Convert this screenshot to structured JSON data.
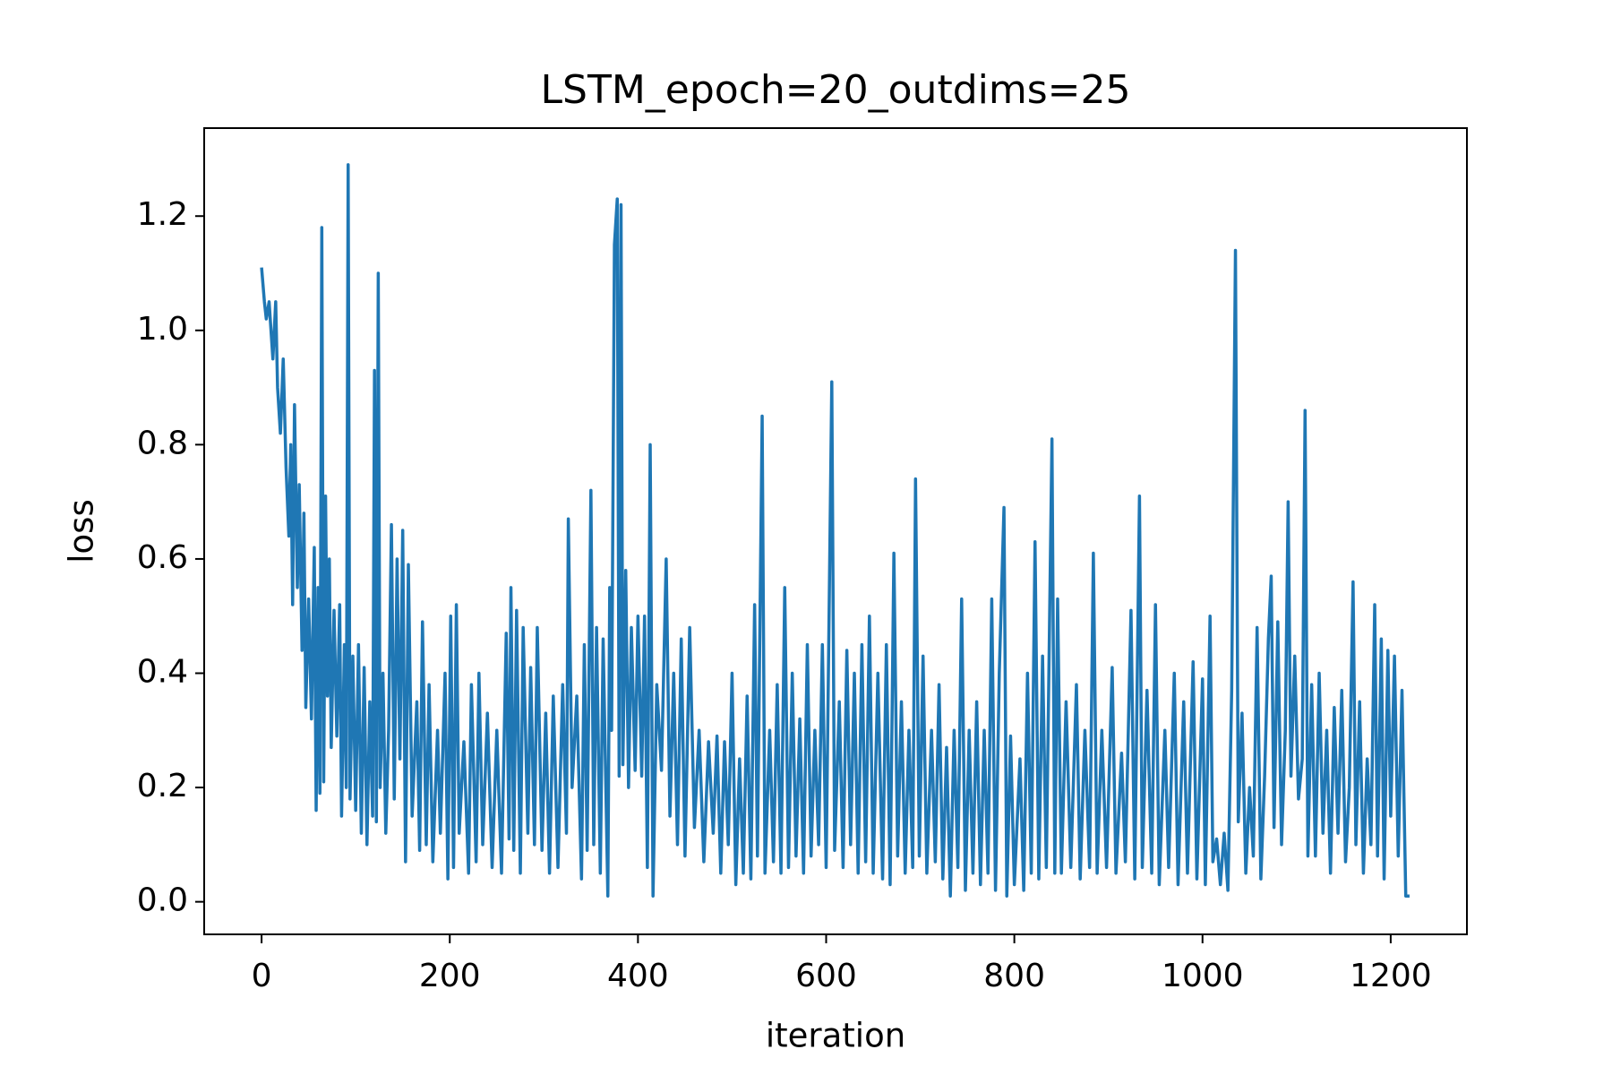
{
  "chart_data": {
    "type": "line",
    "title": "LSTM_epoch=20_outdims=25",
    "xlabel": "iteration",
    "ylabel": "loss",
    "xlim": [
      -61,
      1281
    ],
    "ylim": [
      -0.057,
      1.354
    ],
    "xticks": [
      0,
      200,
      400,
      600,
      800,
      1000,
      1200
    ],
    "yticks": [
      {
        "value": 0,
        "label": "0.0"
      },
      0.2,
      0.4,
      0.6,
      0.8,
      {
        "value": 1,
        "label": "1.0"
      },
      1.2
    ],
    "grid": false,
    "x": [
      0,
      3,
      5,
      8,
      12,
      15,
      17,
      20,
      23,
      26,
      29,
      31,
      33,
      35,
      38,
      40,
      43,
      45,
      47,
      50,
      53,
      56,
      58,
      60,
      62,
      64,
      66,
      68,
      70,
      72,
      74,
      77,
      80,
      83,
      85,
      88,
      90,
      92,
      94,
      97,
      100,
      103,
      106,
      109,
      112,
      115,
      118,
      120,
      122,
      124,
      126,
      129,
      132,
      135,
      138,
      141,
      144,
      147,
      150,
      153,
      156,
      160,
      165,
      168,
      171,
      175,
      178,
      182,
      187,
      190,
      195,
      198,
      201,
      204,
      207,
      210,
      215,
      220,
      223,
      228,
      231,
      235,
      240,
      245,
      250,
      255,
      260,
      263,
      265,
      268,
      271,
      275,
      278,
      283,
      286,
      290,
      293,
      298,
      302,
      306,
      310,
      315,
      320,
      324,
      326,
      330,
      335,
      340,
      343,
      346,
      350,
      353,
      356,
      360,
      363,
      368,
      370,
      372,
      375,
      378,
      380,
      382,
      384,
      387,
      390,
      393,
      397,
      400,
      404,
      407,
      410,
      413,
      416,
      420,
      425,
      430,
      434,
      438,
      442,
      446,
      450,
      455,
      460,
      465,
      470,
      475,
      480,
      484,
      488,
      492,
      496,
      500,
      504,
      508,
      512,
      516,
      520,
      524,
      527,
      532,
      535,
      540,
      544,
      548,
      552,
      556,
      560,
      564,
      568,
      572,
      576,
      580,
      584,
      588,
      592,
      596,
      600,
      606,
      609,
      614,
      618,
      622,
      626,
      630,
      634,
      638,
      642,
      646,
      650,
      655,
      660,
      664,
      668,
      672,
      676,
      680,
      684,
      688,
      692,
      695,
      699,
      703,
      707,
      712,
      716,
      720,
      724,
      728,
      732,
      736,
      740,
      744,
      748,
      752,
      756,
      760,
      764,
      768,
      772,
      776,
      780,
      784,
      789,
      792,
      796,
      800,
      806,
      810,
      814,
      818,
      822,
      826,
      830,
      834,
      840,
      843,
      846,
      850,
      855,
      860,
      866,
      870,
      875,
      880,
      884,
      888,
      893,
      898,
      904,
      908,
      914,
      918,
      924,
      928,
      933,
      936,
      941,
      946,
      950,
      954,
      960,
      964,
      970,
      974,
      980,
      984,
      990,
      994,
      1000,
      1003,
      1008,
      1011,
      1015,
      1019,
      1023,
      1027,
      1031,
      1035,
      1038,
      1042,
      1046,
      1050,
      1054,
      1058,
      1062,
      1066,
      1070,
      1073,
      1076,
      1080,
      1084,
      1088,
      1091,
      1094,
      1098,
      1102,
      1106,
      1109,
      1112,
      1116,
      1120,
      1124,
      1128,
      1132,
      1136,
      1140,
      1144,
      1148,
      1152,
      1156,
      1160,
      1163,
      1167,
      1171,
      1175,
      1179,
      1183,
      1186,
      1190,
      1193,
      1197,
      1200,
      1204,
      1208,
      1212,
      1216,
      1220
    ],
    "series": [
      {
        "name": "loss",
        "color": "#1f77b4",
        "values": [
          1.11,
          1.05,
          1.02,
          1.05,
          0.95,
          1.05,
          0.9,
          0.82,
          0.95,
          0.76,
          0.64,
          0.8,
          0.52,
          0.87,
          0.55,
          0.73,
          0.44,
          0.68,
          0.34,
          0.53,
          0.32,
          0.62,
          0.16,
          0.55,
          0.19,
          1.18,
          0.21,
          0.71,
          0.36,
          0.6,
          0.27,
          0.51,
          0.29,
          0.52,
          0.15,
          0.45,
          0.2,
          1.29,
          0.18,
          0.43,
          0.16,
          0.45,
          0.12,
          0.41,
          0.1,
          0.35,
          0.15,
          0.93,
          0.14,
          1.1,
          0.2,
          0.4,
          0.12,
          0.3,
          0.66,
          0.18,
          0.6,
          0.25,
          0.65,
          0.07,
          0.59,
          0.15,
          0.35,
          0.09,
          0.49,
          0.1,
          0.38,
          0.07,
          0.3,
          0.12,
          0.4,
          0.04,
          0.5,
          0.06,
          0.52,
          0.12,
          0.28,
          0.05,
          0.38,
          0.07,
          0.4,
          0.1,
          0.33,
          0.06,
          0.3,
          0.05,
          0.47,
          0.11,
          0.55,
          0.09,
          0.51,
          0.05,
          0.48,
          0.12,
          0.41,
          0.1,
          0.48,
          0.09,
          0.33,
          0.05,
          0.36,
          0.06,
          0.38,
          0.12,
          0.67,
          0.2,
          0.36,
          0.04,
          0.45,
          0.09,
          0.72,
          0.1,
          0.48,
          0.05,
          0.46,
          0.01,
          0.55,
          0.3,
          1.15,
          1.23,
          0.22,
          1.22,
          0.24,
          0.58,
          0.2,
          0.48,
          0.23,
          0.5,
          0.22,
          0.5,
          0.06,
          0.8,
          0.01,
          0.38,
          0.23,
          0.6,
          0.15,
          0.4,
          0.1,
          0.46,
          0.08,
          0.48,
          0.13,
          0.3,
          0.07,
          0.28,
          0.12,
          0.29,
          0.05,
          0.28,
          0.1,
          0.4,
          0.03,
          0.25,
          0.05,
          0.36,
          0.04,
          0.52,
          0.08,
          0.85,
          0.05,
          0.3,
          0.07,
          0.38,
          0.05,
          0.55,
          0.06,
          0.4,
          0.08,
          0.32,
          0.05,
          0.45,
          0.08,
          0.3,
          0.1,
          0.45,
          0.06,
          0.91,
          0.09,
          0.35,
          0.06,
          0.44,
          0.1,
          0.4,
          0.05,
          0.45,
          0.07,
          0.5,
          0.05,
          0.4,
          0.04,
          0.45,
          0.03,
          0.61,
          0.08,
          0.35,
          0.05,
          0.3,
          0.06,
          0.74,
          0.08,
          0.43,
          0.05,
          0.3,
          0.07,
          0.38,
          0.04,
          0.27,
          0.01,
          0.3,
          0.06,
          0.53,
          0.02,
          0.3,
          0.05,
          0.35,
          0.03,
          0.3,
          0.05,
          0.53,
          0.02,
          0.4,
          0.69,
          0.01,
          0.29,
          0.03,
          0.25,
          0.02,
          0.4,
          0.05,
          0.63,
          0.04,
          0.43,
          0.06,
          0.81,
          0.05,
          0.53,
          0.05,
          0.35,
          0.06,
          0.38,
          0.04,
          0.3,
          0.06,
          0.61,
          0.05,
          0.3,
          0.06,
          0.41,
          0.05,
          0.26,
          0.07,
          0.51,
          0.04,
          0.71,
          0.06,
          0.37,
          0.05,
          0.52,
          0.03,
          0.3,
          0.06,
          0.4,
          0.03,
          0.35,
          0.05,
          0.42,
          0.04,
          0.39,
          0.03,
          0.5,
          0.07,
          0.11,
          0.03,
          0.12,
          0.02,
          0.37,
          1.14,
          0.14,
          0.33,
          0.05,
          0.2,
          0.08,
          0.48,
          0.04,
          0.22,
          0.46,
          0.57,
          0.13,
          0.49,
          0.1,
          0.3,
          0.7,
          0.22,
          0.43,
          0.18,
          0.25,
          0.86,
          0.08,
          0.38,
          0.08,
          0.4,
          0.12,
          0.3,
          0.05,
          0.34,
          0.12,
          0.37,
          0.07,
          0.2,
          0.56,
          0.1,
          0.35,
          0.05,
          0.25,
          0.1,
          0.52,
          0.08,
          0.46,
          0.04,
          0.44,
          0.15,
          0.43,
          0.08,
          0.37,
          0.01,
          0.01
        ]
      }
    ]
  }
}
